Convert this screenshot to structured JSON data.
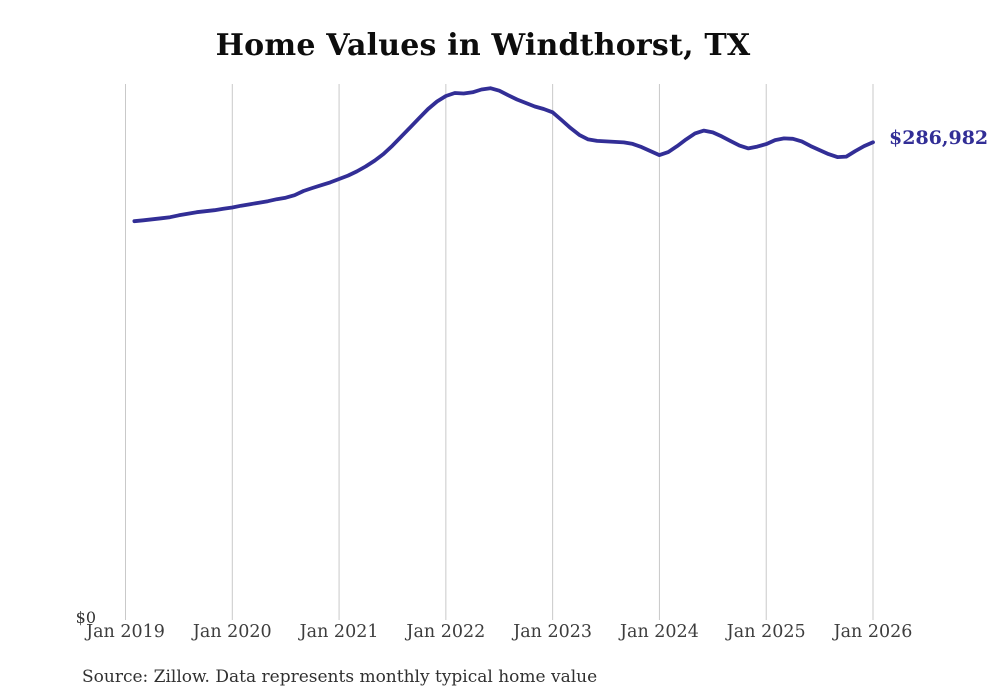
{
  "page": {
    "background_color": "#ffffff"
  },
  "chart": {
    "title": "Home Values in Windthorst, TX",
    "source_note": "Source: Zillow. Data represents monthly typical home value"
  },
  "chart_data": {
    "type": "line",
    "title": "Home Values in Windthorst, TX",
    "xlabel": "",
    "ylabel": "",
    "x_tick_labels": [
      "Jan 2019",
      "Jan 2020",
      "Jan 2021",
      "Jan 2022",
      "Jan 2023",
      "Jan 2024",
      "Jan 2025",
      "Jan 2026"
    ],
    "y_zero_label": "$0",
    "end_value_label": "$286,982",
    "end_value": 286982,
    "ylim": [
      0,
      322000
    ],
    "grid": "vertical-only",
    "legend": "none",
    "months": {
      "start": "2019-01",
      "end": "2025-12",
      "count": 84
    },
    "series": [
      {
        "name": "typical-home-value",
        "values": [
          239600,
          240100,
          240700,
          241300,
          242000,
          243100,
          244100,
          245000,
          245600,
          246200,
          247100,
          247800,
          248900,
          249800,
          250700,
          251600,
          252800,
          253700,
          255200,
          257700,
          259500,
          261200,
          262900,
          264900,
          267000,
          269500,
          272500,
          276000,
          280000,
          285000,
          290500,
          296000,
          301500,
          307000,
          311500,
          314800,
          316600,
          316300,
          317000,
          318700,
          319500,
          318000,
          315300,
          312700,
          310600,
          308500,
          307000,
          305000,
          300400,
          295600,
          291400,
          288700,
          287800,
          287500,
          287200,
          286900,
          286000,
          284100,
          281700,
          279300,
          281100,
          284700,
          288700,
          292300,
          294000,
          292900,
          290500,
          287700,
          285000,
          283300,
          284400,
          285900,
          288300,
          289300,
          289100,
          287500,
          284700,
          282300,
          279900,
          278100,
          278400,
          281700,
          284700,
          286982
        ]
      }
    ],
    "colors": {
      "line": "#322e96",
      "gridline": "#c9c9c9",
      "title": "#0d0d0d",
      "tick_text": "#3d3d3d",
      "end_label": "#322e96",
      "source_text": "#303030"
    }
  },
  "layout_note": "line chart, vertical year gridlines, value label at line end"
}
